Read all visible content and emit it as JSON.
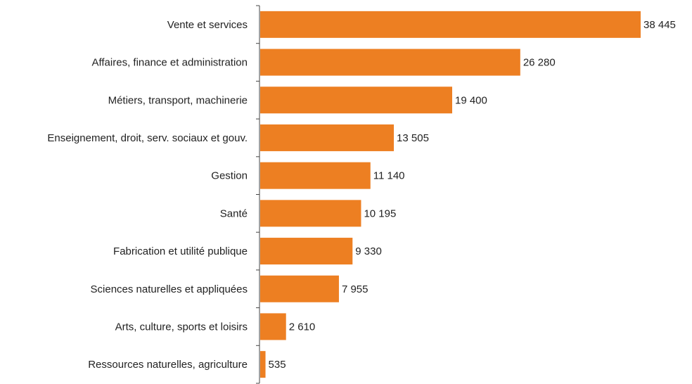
{
  "chart_data": {
    "type": "bar",
    "orientation": "horizontal",
    "title": "",
    "xlabel": "",
    "ylabel": "",
    "categories": [
      "Vente et services",
      "Affaires, finance et administration",
      "Métiers, transport, machinerie",
      "Enseignement, droit, serv. sociaux et gouv.",
      "Gestion",
      "Santé",
      "Fabrication et utilité publique",
      "Sciences naturelles et appliquées",
      "Arts, culture, sports et loisirs",
      "Ressources naturelles, agriculture"
    ],
    "values": [
      38445,
      26280,
      19400,
      13505,
      11140,
      10195,
      9330,
      7955,
      2610,
      535
    ],
    "value_labels": [
      "38 445",
      "26 280",
      "19 400",
      "13 505",
      "11 140",
      "10 195",
      "9 330",
      "7 955",
      "2 610",
      "535"
    ],
    "xlim": [
      0,
      38445
    ],
    "grid": false,
    "legend": "none",
    "bar_color": "#ED7F22",
    "axis_color": "#444444"
  }
}
